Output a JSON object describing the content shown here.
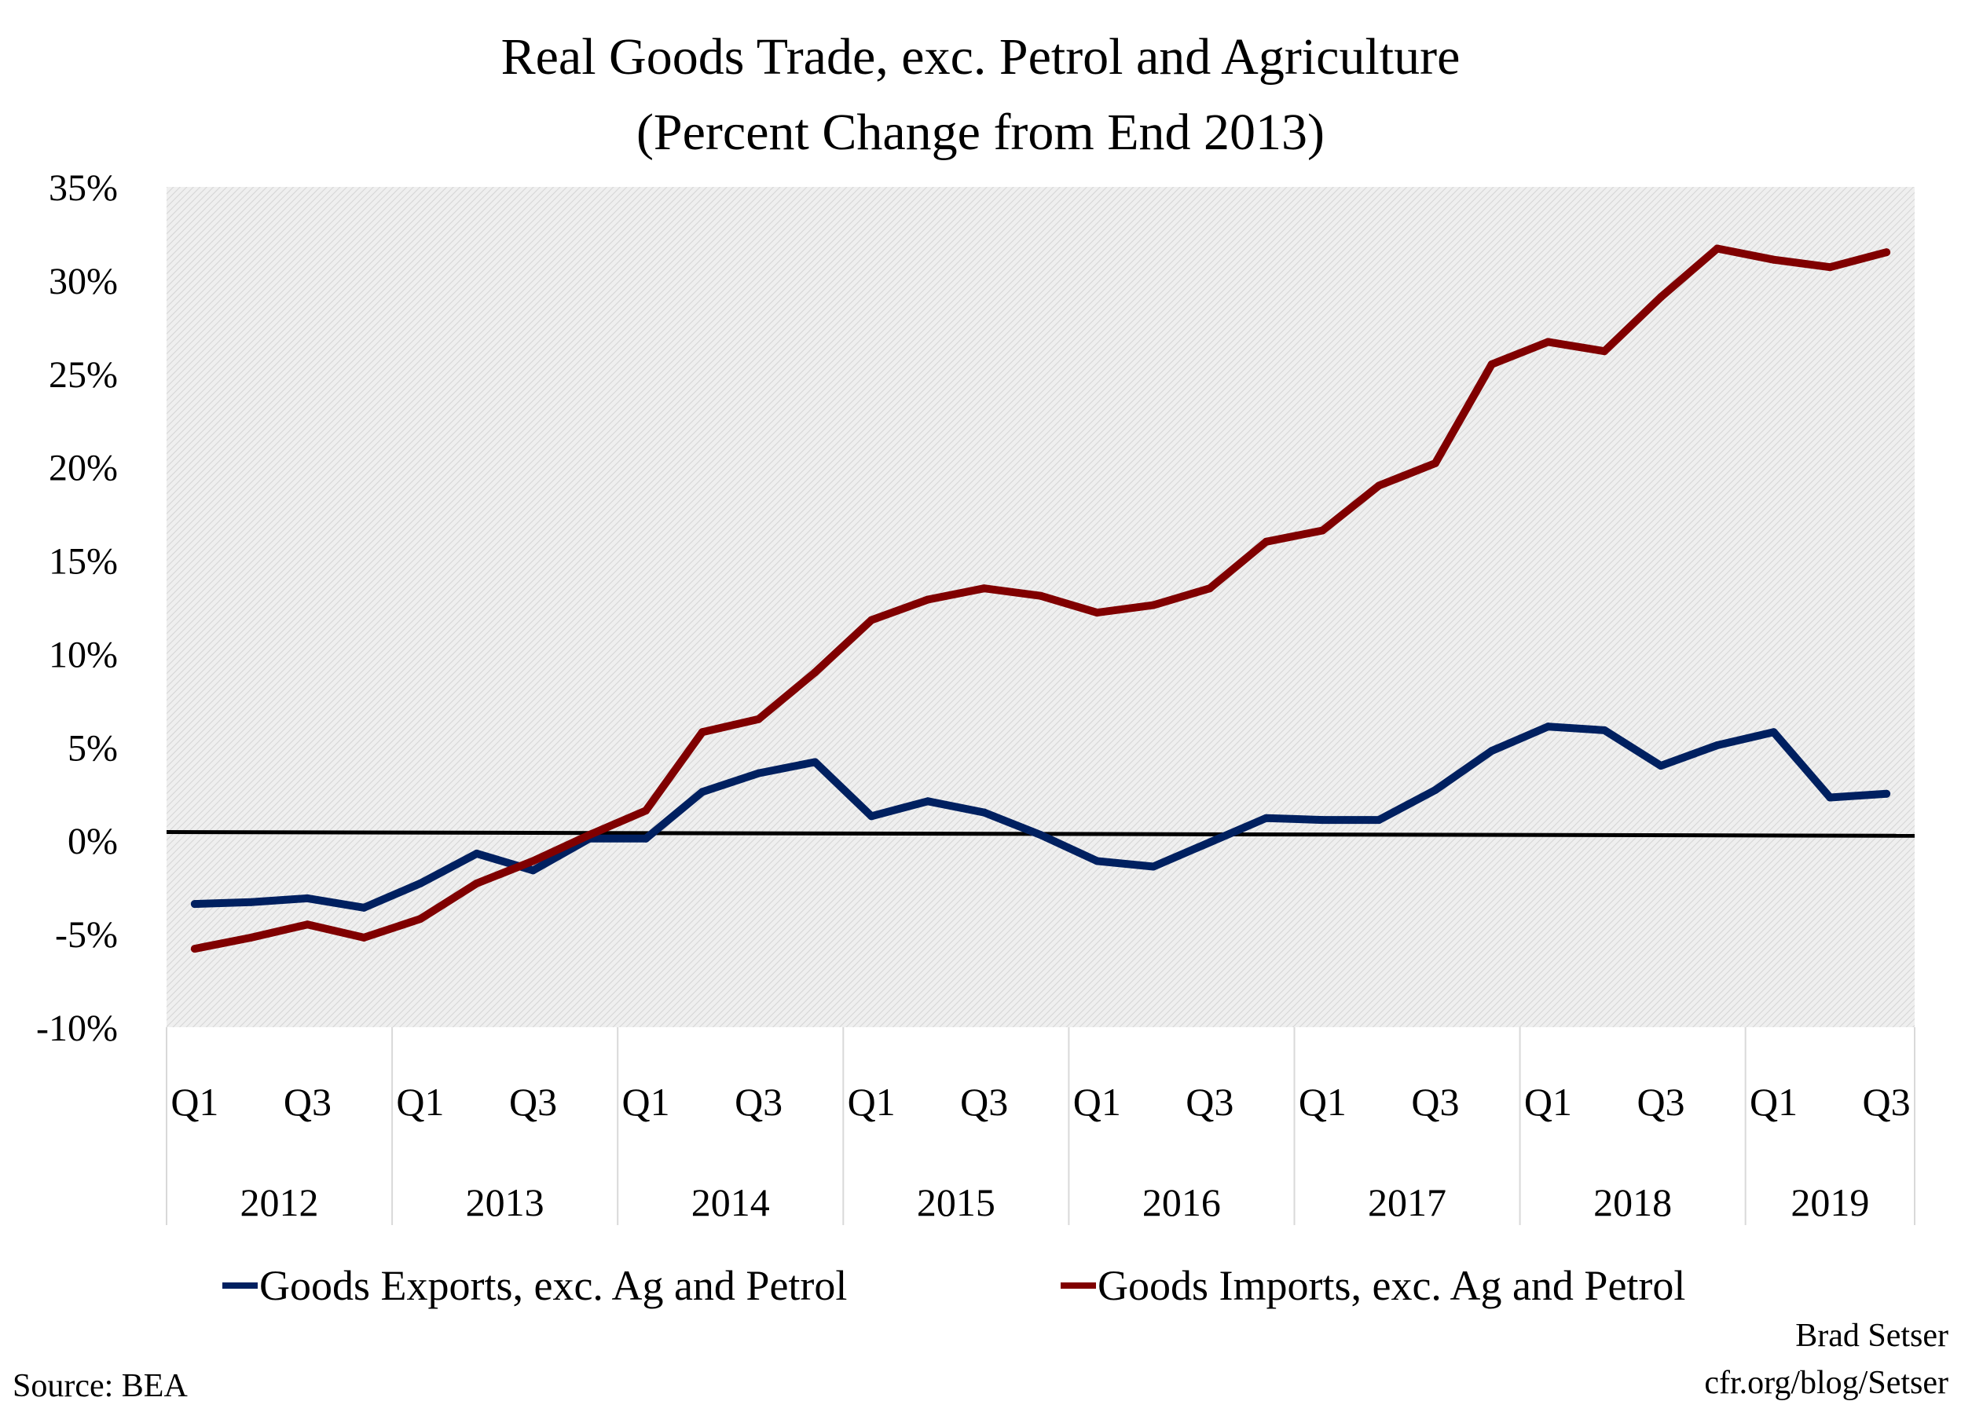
{
  "chart_data": {
    "type": "line",
    "title": "Real Goods Trade, exc. Petrol and Agriculture",
    "subtitle": "(Percent Change from End 2013)",
    "ylim": [
      -10,
      35
    ],
    "y_ticks": [
      "35%",
      "30%",
      "25%",
      "20%",
      "15%",
      "10%",
      "5%",
      "0%",
      "-5%",
      "-10%"
    ],
    "y_tick_values": [
      35,
      30,
      25,
      20,
      15,
      10,
      5,
      0,
      -5,
      -10
    ],
    "years": [
      "2012",
      "2013",
      "2014",
      "2015",
      "2016",
      "2017",
      "2018",
      "2019"
    ],
    "quarters_per_year": [
      4,
      4,
      4,
      4,
      4,
      4,
      4,
      3
    ],
    "quarter_labels": [
      "Q1",
      "",
      "Q3",
      ""
    ],
    "grid": false,
    "zero_line": true,
    "legend_position": "bottom",
    "series": [
      {
        "name": "Goods Exports, exc. Ag and Petrol",
        "color": "#002060",
        "values": [
          -3.4,
          -3.3,
          -3.1,
          -3.6,
          -2.3,
          -0.7,
          -1.6,
          0.1,
          0.1,
          2.6,
          3.6,
          4.2,
          1.3,
          2.1,
          1.5,
          0.3,
          -1.1,
          -1.4,
          -0.1,
          1.2,
          1.1,
          1.1,
          2.7,
          4.8,
          6.1,
          5.9,
          4.0,
          5.1,
          5.8,
          2.3,
          2.5
        ]
      },
      {
        "name": "Goods Imports, exc. Ag and Petrol",
        "color": "#800000",
        "values": [
          -5.8,
          -5.2,
          -4.5,
          -5.2,
          -4.2,
          -2.3,
          -1.1,
          0.3,
          1.6,
          5.8,
          6.5,
          9.0,
          11.8,
          12.9,
          13.5,
          13.1,
          12.2,
          12.6,
          13.5,
          16.0,
          16.6,
          19.0,
          20.2,
          25.5,
          26.7,
          26.2,
          29.1,
          31.7,
          31.1,
          30.7,
          31.5
        ]
      }
    ]
  },
  "footer": {
    "source": "Source: BEA",
    "author": "Brad Setser",
    "url": "cfr.org/blog/Setser"
  }
}
